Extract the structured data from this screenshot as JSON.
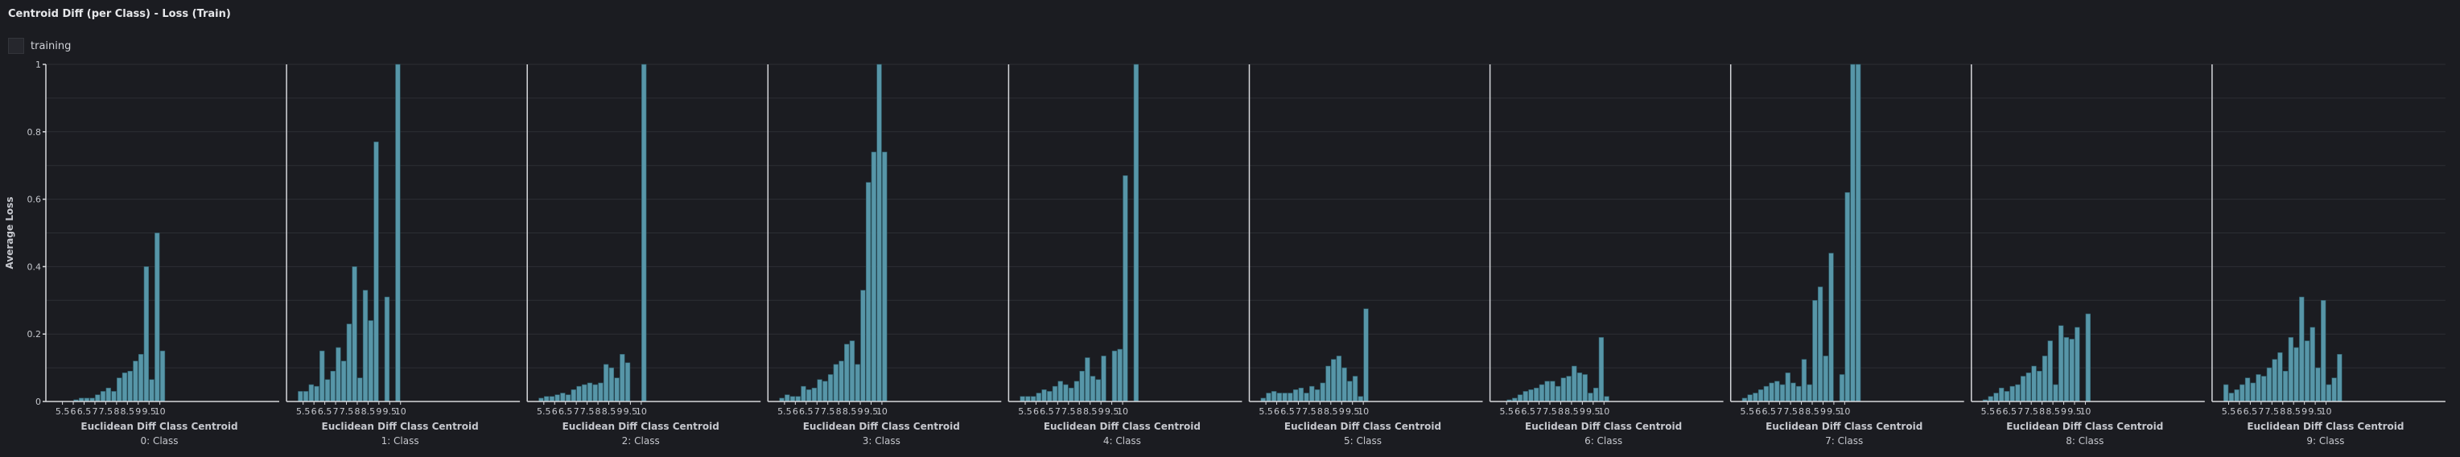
{
  "panel": {
    "title": "Centroid Diff (per Class) - Loss (Train)",
    "legend_label": "training"
  },
  "colors": {
    "background": "#1b1c21",
    "bar_fill": "#5796a8",
    "bar_stroke": "#2e5f6d",
    "grid": "#2c2e34",
    "axis": "#d7d8dc",
    "text": "#c5c7cd"
  },
  "chart_data": {
    "type": "bar",
    "ylabel": "Average Loss",
    "xlabel": "Euclidean Diff Class Centroid",
    "ylim": [
      0,
      1
    ],
    "yticks": [
      "0",
      "0.2",
      "0.4",
      "0.6",
      "0.8",
      "1"
    ],
    "xticks": [
      "5.5",
      "6",
      "6.5",
      "7",
      "7.5",
      "8",
      "8.5",
      "9",
      "9.5",
      "10"
    ],
    "x_start": 5.25,
    "bin_width": 0.25,
    "grid": true,
    "facets": [
      {
        "label": "0: Class",
        "values": [
          0,
          0,
          0,
          0.005,
          0.01,
          0.01,
          0.01,
          0.02,
          0.03,
          0.04,
          0.03,
          0.07,
          0.085,
          0.09,
          0.12,
          0.14,
          0.4,
          0.065,
          0.5,
          0.15
        ]
      },
      {
        "label": "1: Class",
        "values": [
          0.03,
          0.03,
          0.05,
          0.045,
          0.15,
          0.065,
          0.09,
          0.16,
          0.12,
          0.23,
          0.4,
          0.07,
          0.33,
          0.24,
          0.77,
          0,
          0.31,
          0,
          1.0,
          0
        ]
      },
      {
        "label": "2: Class",
        "values": [
          0.01,
          0.015,
          0.015,
          0.02,
          0.025,
          0.02,
          0.035,
          0.045,
          0.05,
          0.055,
          0.05,
          0.055,
          0.11,
          0.1,
          0.07,
          0.14,
          0.115,
          0,
          0,
          1.0
        ]
      },
      {
        "label": "3: Class",
        "values": [
          0.01,
          0.02,
          0.015,
          0.015,
          0.045,
          0.035,
          0.04,
          0.065,
          0.06,
          0.08,
          0.11,
          0.12,
          0.17,
          0.18,
          0.11,
          0.33,
          0.65,
          0.74,
          1.0,
          0.74
        ]
      },
      {
        "label": "4: Class",
        "values": [
          0.015,
          0.015,
          0.015,
          0.025,
          0.035,
          0.03,
          0.045,
          0.06,
          0.05,
          0.04,
          0.06,
          0.09,
          0.13,
          0.075,
          0.065,
          0.135,
          0,
          0.15,
          0.155,
          0.67,
          0,
          1.0
        ]
      },
      {
        "label": "5: Class",
        "values": [
          0.01,
          0.025,
          0.03,
          0.025,
          0.025,
          0.025,
          0.035,
          0.04,
          0.025,
          0.045,
          0.035,
          0.055,
          0.105,
          0.125,
          0.135,
          0.1,
          0.06,
          0.075,
          0.015,
          0.275
        ]
      },
      {
        "label": "6: Class",
        "values": [
          0,
          0.005,
          0.01,
          0.02,
          0.03,
          0.035,
          0.04,
          0.05,
          0.06,
          0.06,
          0.045,
          0.07,
          0.075,
          0.105,
          0.085,
          0.08,
          0.025,
          0.04,
          0.19,
          0.015
        ]
      },
      {
        "label": "7: Class",
        "values": [
          0.01,
          0.02,
          0.025,
          0.035,
          0.045,
          0.055,
          0.06,
          0.05,
          0.085,
          0.055,
          0.045,
          0.125,
          0.05,
          0.3,
          0.34,
          0.135,
          0.44,
          0,
          0.08,
          0.62,
          1.0,
          1.0
        ]
      },
      {
        "label": "8: Class",
        "values": [
          0.005,
          0.015,
          0.025,
          0.04,
          0.03,
          0.045,
          0.05,
          0.075,
          0.085,
          0.105,
          0.09,
          0.135,
          0.18,
          0.05,
          0.225,
          0.19,
          0.185,
          0.22,
          0,
          0.26
        ]
      },
      {
        "label": "9: Class",
        "values": [
          0.05,
          0.025,
          0.035,
          0.05,
          0.07,
          0.055,
          0.08,
          0.075,
          0.1,
          0.125,
          0.145,
          0.09,
          0.19,
          0.16,
          0.31,
          0.18,
          0.22,
          0.1,
          0.3,
          0.05,
          0.07,
          0.14
        ]
      }
    ]
  }
}
